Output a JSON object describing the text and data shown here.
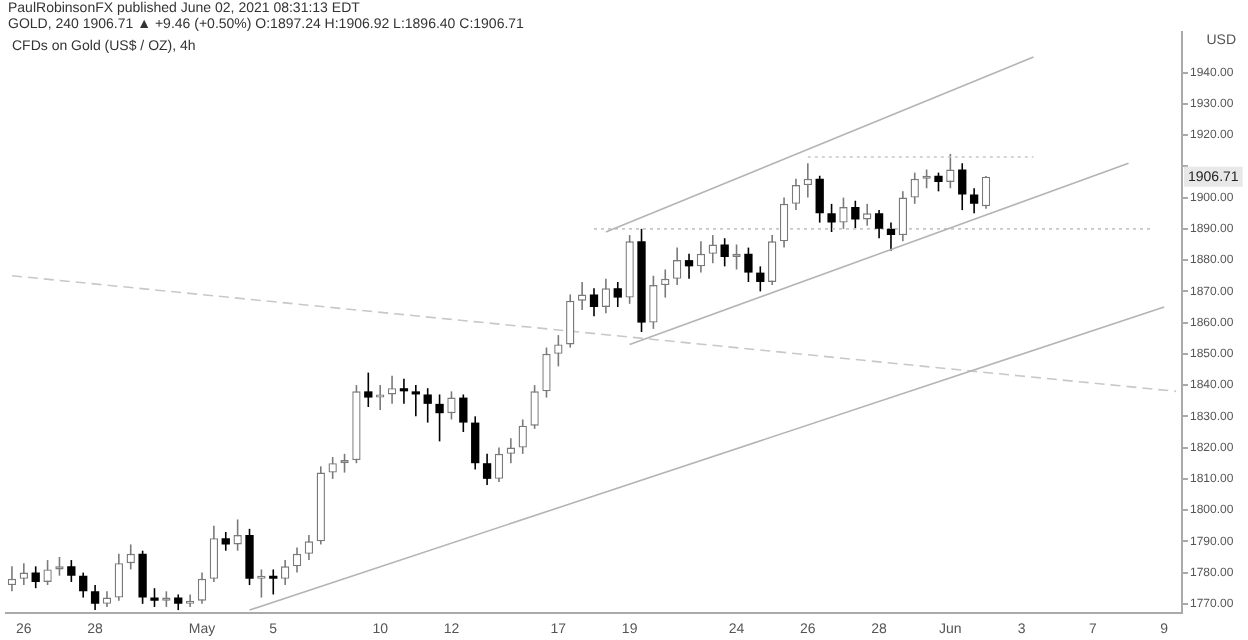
{
  "chart_data": {
    "type": "candlestick",
    "title": "CFDs on Gold (US$ / OZ), 4h",
    "annotations": [
      "PaulRobinsonFX published June 02, 2021 08:31:13 EDT",
      "GOLD, 240  1906.71 ▲ +9.46 (+0.50%)  O:1897.24 H:1906.92 L:1896.40 C:1906.71",
      "USD",
      {
        "text": "1906.71",
        "y": 1906.71
      }
    ],
    "categories": [
      null,
      "26",
      null,
      null,
      null,
      null,
      null,
      "28",
      null,
      null,
      null,
      null,
      null,
      null,
      null,
      null,
      "May",
      null,
      null,
      null,
      null,
      null,
      "5",
      null,
      null,
      null,
      null,
      null,
      null,
      null,
      null,
      "10",
      null,
      null,
      null,
      null,
      null,
      "12",
      null,
      null,
      null,
      null,
      null,
      null,
      null,
      null,
      "17",
      null,
      null,
      null,
      null,
      null,
      "19",
      null,
      null,
      null,
      null,
      null,
      null,
      null,
      null,
      "24",
      null,
      null,
      null,
      null,
      null,
      "26",
      null,
      null,
      null,
      null,
      null,
      "28",
      null,
      null,
      null,
      null,
      null,
      "Jun",
      null,
      null,
      null,
      null,
      null,
      "3",
      null,
      null,
      null,
      null,
      null,
      "7",
      null,
      null,
      null,
      null,
      null,
      "9",
      null
    ],
    "colors": [
      "#7a7a7a",
      "#7a7a7a",
      "#000000",
      "#7a7a7a",
      "#7a7a7a",
      "#000000",
      "#000000",
      "#000000",
      "#7a7a7a",
      "#7a7a7a",
      "#7a7a7a",
      "#000000",
      "#000000",
      "#7a7a7a",
      "#000000",
      "#7a7a7a",
      "#7a7a7a",
      "#7a7a7a",
      "#000000",
      "#7a7a7a",
      "#000000",
      "#7a7a7a",
      "#000000",
      "#7a7a7a",
      "#7a7a7a",
      "#7a7a7a",
      "#7a7a7a",
      "#7a7a7a",
      "#7a7a7a",
      "#7a7a7a",
      "#000000",
      "#7a7a7a",
      "#7a7a7a",
      "#000000",
      "#000000",
      "#000000",
      "#000000",
      "#7a7a7a",
      "#000000",
      "#000000",
      "#000000",
      "#7a7a7a",
      "#7a7a7a",
      "#7a7a7a",
      "#7a7a7a",
      "#7a7a7a",
      "#7a7a7a",
      "#7a7a7a",
      "#7a7a7a",
      "#000000",
      "#7a7a7a",
      "#000000",
      "#7a7a7a",
      "#000000",
      "#7a7a7a",
      "#7a7a7a",
      "#7a7a7a",
      "#000000",
      "#7a7a7a",
      "#7a7a7a",
      "#000000",
      "#7a7a7a",
      "#000000",
      "#000000",
      "#7a7a7a",
      "#7a7a7a",
      "#7a7a7a",
      "#7a7a7a",
      "#000000",
      "#000000",
      "#7a7a7a",
      "#000000",
      "#7a7a7a",
      "#000000",
      "#000000",
      "#7a7a7a",
      "#7a7a7a",
      "#7a7a7a",
      "#000000",
      "#7a7a7a",
      "#000000",
      "#000000",
      "#7a7a7a",
      null,
      null,
      null,
      null,
      null,
      null,
      null,
      null,
      null,
      null,
      null,
      null,
      null,
      null,
      null,
      null
    ],
    "ohlc": [
      [
        1776,
        1782,
        1774,
        1778
      ],
      [
        1778,
        1783,
        1776,
        1780
      ],
      [
        1780,
        1782,
        1775,
        1777
      ],
      [
        1777,
        1784,
        1776,
        1781
      ],
      [
        1781,
        1785,
        1779,
        1782
      ],
      [
        1782,
        1784,
        1777,
        1779
      ],
      [
        1779,
        1780,
        1772,
        1774
      ],
      [
        1774,
        1776,
        1768,
        1770
      ],
      [
        1770,
        1774,
        1769,
        1772
      ],
      [
        1772,
        1786,
        1771,
        1783
      ],
      [
        1783,
        1789,
        1781,
        1786
      ],
      [
        1786,
        1787,
        1770,
        1772
      ],
      [
        1772,
        1775,
        1769,
        1771
      ],
      [
        1771,
        1774,
        1769,
        1772
      ],
      [
        1772,
        1773,
        1768,
        1770
      ],
      [
        1770,
        1773,
        1769,
        1771
      ],
      [
        1771,
        1780,
        1770,
        1778
      ],
      [
        1778,
        1795,
        1777,
        1791
      ],
      [
        1791,
        1793,
        1787,
        1789
      ],
      [
        1789,
        1797,
        1787,
        1792
      ],
      [
        1792,
        1794,
        1776,
        1778
      ],
      [
        1778,
        1781,
        1772,
        1779
      ],
      [
        1779,
        1781,
        1773,
        1778
      ],
      [
        1778,
        1784,
        1776,
        1782
      ],
      [
        1782,
        1788,
        1780,
        1786
      ],
      [
        1786,
        1792,
        1784,
        1790
      ],
      [
        1790,
        1814,
        1789,
        1812
      ],
      [
        1812,
        1817,
        1810,
        1815
      ],
      [
        1815,
        1818,
        1812,
        1816
      ],
      [
        1816,
        1840,
        1815,
        1838
      ],
      [
        1838,
        1844,
        1833,
        1836
      ],
      [
        1836,
        1840,
        1832,
        1837
      ],
      [
        1837,
        1843,
        1834,
        1839
      ],
      [
        1839,
        1842,
        1834,
        1838
      ],
      [
        1838,
        1840,
        1830,
        1837
      ],
      [
        1837,
        1839,
        1828,
        1834
      ],
      [
        1834,
        1837,
        1822,
        1831
      ],
      [
        1831,
        1838,
        1829,
        1836
      ],
      [
        1836,
        1837,
        1825,
        1828
      ],
      [
        1828,
        1830,
        1813,
        1815
      ],
      [
        1815,
        1818,
        1808,
        1810
      ],
      [
        1810,
        1820,
        1809,
        1818
      ],
      [
        1818,
        1823,
        1815,
        1820
      ],
      [
        1820,
        1829,
        1818,
        1827
      ],
      [
        1827,
        1840,
        1826,
        1838
      ],
      [
        1838,
        1852,
        1836,
        1850
      ],
      [
        1850,
        1856,
        1846,
        1853
      ],
      [
        1853,
        1869,
        1852,
        1867
      ],
      [
        1867,
        1873,
        1864,
        1869
      ],
      [
        1869,
        1871,
        1862,
        1865
      ],
      [
        1865,
        1874,
        1863,
        1871
      ],
      [
        1871,
        1873,
        1865,
        1868
      ],
      [
        1868,
        1888,
        1866,
        1886
      ],
      [
        1886,
        1890,
        1857,
        1860
      ],
      [
        1860,
        1875,
        1858,
        1872
      ],
      [
        1872,
        1877,
        1868,
        1874
      ],
      [
        1874,
        1884,
        1872,
        1880
      ],
      [
        1880,
        1882,
        1874,
        1878
      ],
      [
        1878,
        1886,
        1876,
        1882
      ],
      [
        1882,
        1888,
        1879,
        1885
      ],
      [
        1885,
        1887,
        1878,
        1881
      ],
      [
        1881,
        1885,
        1877,
        1882
      ],
      [
        1882,
        1884,
        1873,
        1876
      ],
      [
        1876,
        1878,
        1870,
        1873
      ],
      [
        1873,
        1888,
        1872,
        1886
      ],
      [
        1886,
        1900,
        1884,
        1898
      ],
      [
        1898,
        1906,
        1896,
        1904
      ],
      [
        1904,
        1911,
        1900,
        1906
      ],
      [
        1906,
        1907,
        1892,
        1895
      ],
      [
        1895,
        1898,
        1889,
        1892
      ],
      [
        1892,
        1900,
        1890,
        1897
      ],
      [
        1897,
        1899,
        1890,
        1893
      ],
      [
        1893,
        1898,
        1891,
        1895
      ],
      [
        1895,
        1896,
        1887,
        1890
      ],
      [
        1890,
        1892,
        1883,
        1888
      ],
      [
        1888,
        1902,
        1886,
        1900
      ],
      [
        1900,
        1908,
        1898,
        1906
      ],
      [
        1906,
        1909,
        1903,
        1907
      ],
      [
        1907,
        1908,
        1902,
        1905
      ],
      [
        1905,
        1914,
        1903,
        1909
      ],
      [
        1909,
        1911,
        1896,
        1901
      ],
      [
        1901,
        1903,
        1895,
        1898
      ],
      [
        1897.24,
        1906.92,
        1896.4,
        1906.71
      ],
      null,
      null,
      null,
      null,
      null,
      null,
      null,
      null,
      null,
      null,
      null,
      null,
      null,
      null,
      null,
      null
    ],
    "series": [
      {
        "type": "line",
        "color": "#b4b4b4",
        "line_style": "solid",
        "values": [
          null,
          null,
          null,
          null,
          null,
          null,
          null,
          null,
          null,
          null,
          null,
          null,
          null,
          null,
          null,
          null,
          null,
          null,
          null,
          null,
          null,
          null,
          null,
          null,
          null,
          null,
          null,
          null,
          null,
          null,
          null,
          null,
          null,
          null,
          null,
          null,
          null,
          null,
          null,
          null,
          null,
          null,
          null,
          null,
          null,
          null,
          null,
          null,
          null,
          null,
          1889,
          null,
          null,
          null,
          null,
          null,
          null,
          null,
          null,
          null,
          null,
          null,
          null,
          null,
          null,
          null,
          null,
          null,
          null,
          null,
          null,
          null,
          null,
          null,
          null,
          null,
          null,
          null,
          null,
          null,
          null,
          null,
          null,
          null,
          null,
          null,
          1945,
          null,
          null,
          null,
          null,
          null,
          null,
          null,
          null,
          null,
          null,
          null,
          null
        ]
      },
      {
        "type": "line",
        "color": "#b4b4b4",
        "line_style": "solid",
        "values": [
          null,
          null,
          null,
          null,
          null,
          null,
          null,
          null,
          null,
          null,
          null,
          null,
          null,
          null,
          null,
          null,
          null,
          null,
          null,
          null,
          null,
          null,
          null,
          null,
          null,
          null,
          null,
          null,
          null,
          null,
          null,
          null,
          null,
          null,
          null,
          null,
          null,
          null,
          null,
          null,
          null,
          null,
          null,
          null,
          null,
          null,
          null,
          null,
          null,
          null,
          null,
          null,
          1853,
          null,
          null,
          null,
          null,
          null,
          null,
          null,
          null,
          null,
          null,
          null,
          null,
          null,
          null,
          null,
          null,
          null,
          null,
          null,
          null,
          null,
          null,
          null,
          null,
          null,
          null,
          null,
          null,
          null,
          null,
          null,
          null,
          null,
          null,
          null,
          null,
          null,
          null,
          null,
          null,
          null,
          1911,
          null,
          null,
          null,
          null
        ]
      },
      {
        "type": "line",
        "color": "#b4b4b4",
        "line_style": "solid",
        "values": [
          null,
          null,
          null,
          null,
          null,
          null,
          null,
          null,
          null,
          null,
          null,
          null,
          null,
          null,
          null,
          null,
          null,
          null,
          null,
          null,
          1768,
          null,
          null,
          null,
          null,
          null,
          null,
          null,
          null,
          null,
          null,
          null,
          null,
          null,
          null,
          null,
          null,
          null,
          null,
          null,
          null,
          null,
          null,
          null,
          null,
          null,
          null,
          null,
          null,
          null,
          null,
          null,
          null,
          null,
          null,
          null,
          null,
          null,
          null,
          null,
          null,
          null,
          null,
          null,
          null,
          null,
          null,
          null,
          null,
          null,
          null,
          null,
          null,
          null,
          null,
          null,
          null,
          null,
          null,
          null,
          null,
          null,
          null,
          null,
          null,
          null,
          null,
          null,
          null,
          null,
          null,
          null,
          null,
          null,
          null,
          null,
          null,
          1865,
          null
        ]
      },
      {
        "type": "line",
        "color": "#c8c8c8",
        "line_style": "dashed",
        "values": [
          1875,
          null,
          null,
          null,
          null,
          null,
          null,
          null,
          null,
          null,
          null,
          null,
          null,
          null,
          null,
          null,
          null,
          null,
          null,
          null,
          null,
          null,
          null,
          null,
          null,
          null,
          null,
          null,
          null,
          null,
          null,
          null,
          null,
          null,
          null,
          null,
          null,
          null,
          null,
          null,
          null,
          null,
          null,
          null,
          null,
          null,
          null,
          null,
          null,
          null,
          null,
          null,
          null,
          null,
          null,
          null,
          null,
          null,
          null,
          null,
          null,
          null,
          null,
          null,
          null,
          null,
          null,
          null,
          null,
          null,
          null,
          null,
          null,
          null,
          null,
          null,
          null,
          null,
          null,
          null,
          null,
          null,
          null,
          null,
          null,
          null,
          null,
          null,
          null,
          null,
          null,
          null,
          null,
          null,
          null,
          null,
          null,
          null,
          1838
        ]
      },
      {
        "type": "line",
        "color": "#c8c8c8",
        "line_style": "dotted",
        "values": [
          null,
          null,
          null,
          null,
          null,
          null,
          null,
          null,
          null,
          null,
          null,
          null,
          null,
          null,
          null,
          null,
          null,
          null,
          null,
          null,
          null,
          null,
          null,
          null,
          null,
          null,
          null,
          null,
          null,
          null,
          null,
          null,
          null,
          null,
          null,
          null,
          null,
          null,
          null,
          null,
          null,
          null,
          null,
          null,
          null,
          null,
          null,
          null,
          null,
          1890,
          null,
          null,
          null,
          null,
          null,
          null,
          null,
          null,
          null,
          null,
          null,
          null,
          null,
          null,
          null,
          null,
          null,
          null,
          null,
          null,
          null,
          null,
          null,
          null,
          null,
          null,
          null,
          null,
          null,
          null,
          null,
          null,
          null,
          null,
          null,
          null,
          null,
          null,
          null,
          null,
          null,
          null,
          null,
          null,
          null,
          null,
          1890,
          null,
          null
        ]
      },
      {
        "type": "line",
        "color": "#c8c8c8",
        "line_style": "dotted",
        "values": [
          null,
          null,
          null,
          null,
          null,
          null,
          null,
          null,
          null,
          null,
          null,
          null,
          null,
          null,
          null,
          null,
          null,
          null,
          null,
          null,
          null,
          null,
          null,
          null,
          null,
          null,
          null,
          null,
          null,
          null,
          null,
          null,
          null,
          null,
          null,
          null,
          null,
          null,
          null,
          null,
          null,
          null,
          null,
          null,
          null,
          null,
          null,
          null,
          null,
          null,
          null,
          null,
          null,
          null,
          null,
          null,
          null,
          null,
          null,
          null,
          null,
          null,
          null,
          null,
          null,
          null,
          null,
          1913,
          null,
          null,
          null,
          null,
          null,
          null,
          null,
          null,
          null,
          null,
          null,
          null,
          null,
          null,
          null,
          null,
          null,
          null,
          1913,
          null,
          null,
          null,
          null,
          null,
          null,
          null,
          null,
          null,
          null,
          null,
          null
        ]
      }
    ],
    "ylim": [
      1767,
      1953
    ],
    "yticks": [
      {
        "value": 1770,
        "label": "1770.00"
      },
      {
        "value": 1780,
        "label": "1780.00"
      },
      {
        "value": 1790,
        "label": "1790.00"
      },
      {
        "value": 1800,
        "label": "1800.00"
      },
      {
        "value": 1810,
        "label": "1810.00"
      },
      {
        "value": 1820,
        "label": "1820.00"
      },
      {
        "value": 1830,
        "label": "1830.00"
      },
      {
        "value": 1840,
        "label": "1840.00"
      },
      {
        "value": 1850,
        "label": "1850.00"
      },
      {
        "value": 1860,
        "label": "1860.00"
      },
      {
        "value": 1870,
        "label": "1870.00"
      },
      {
        "value": 1880,
        "label": "1880.00"
      },
      {
        "value": 1890,
        "label": "1890.00"
      },
      {
        "value": 1900,
        "label": "1900.00"
      },
      {
        "value": 1910,
        "label": null
      },
      {
        "value": 1920,
        "label": "1920.00"
      },
      {
        "value": 1930,
        "label": "1930.00"
      },
      {
        "value": 1940,
        "label": "1940.00"
      }
    ],
    "grid": false,
    "legend": false
  }
}
